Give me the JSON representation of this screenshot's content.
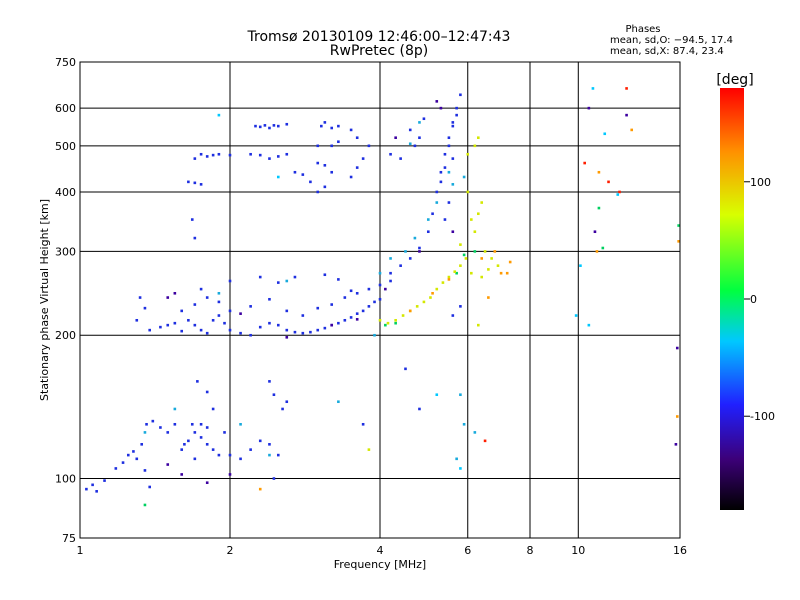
{
  "chart_data": {
    "type": "scatter",
    "title": "Tromsø 20130109 12:46:00–12:47:43",
    "subtitle": "RwPretec (8p)",
    "xlabel": "Frequency [MHz]",
    "ylabel": "Stationary phase Virtual Height [km]",
    "x_scale": "log",
    "y_scale": "log",
    "xlim": [
      1,
      16
    ],
    "ylim": [
      75,
      750
    ],
    "x_ticks": [
      1,
      2,
      4,
      6,
      8,
      10,
      16
    ],
    "y_ticks": [
      75,
      100,
      200,
      300,
      400,
      500,
      600,
      750
    ],
    "grid": true,
    "legend": {
      "title": "Phases",
      "line1": "mean, sd,O: −94.5, 17.4",
      "line2": "mean, sd,X:  87.4, 23.4",
      "placement": "top-right"
    },
    "colorbar": {
      "label": "[deg]",
      "range": [
        -180,
        180
      ],
      "ticks": [
        100,
        0,
        -100
      ],
      "colormap": [
        "#000000",
        "#3c0078",
        "#2020ff",
        "#00c8ff",
        "#00ff40",
        "#d8ff00",
        "#ff9000",
        "#ff0000"
      ]
    },
    "series": [
      {
        "color": "#1e2fe0",
        "points": [
          [
            1.03,
            95
          ],
          [
            1.06,
            97
          ],
          [
            1.08,
            94
          ],
          [
            1.12,
            99
          ],
          [
            1.18,
            105
          ],
          [
            1.22,
            108
          ],
          [
            1.25,
            112
          ],
          [
            1.28,
            114
          ],
          [
            1.3,
            110
          ],
          [
            1.33,
            118
          ],
          [
            1.35,
            104
          ],
          [
            1.38,
            96
          ],
          [
            1.36,
            130
          ],
          [
            1.4,
            132
          ],
          [
            1.45,
            128
          ],
          [
            1.5,
            125
          ],
          [
            1.55,
            130
          ],
          [
            1.6,
            115
          ],
          [
            1.62,
            118
          ],
          [
            1.65,
            120
          ],
          [
            1.7,
            125
          ],
          [
            1.75,
            122
          ],
          [
            1.8,
            118
          ],
          [
            1.85,
            115
          ],
          [
            1.9,
            112
          ],
          [
            1.7,
            110
          ],
          [
            1.8,
            128
          ],
          [
            1.75,
            130
          ],
          [
            1.68,
            130
          ],
          [
            1.85,
            140
          ],
          [
            1.72,
            160
          ],
          [
            1.8,
            152
          ],
          [
            1.95,
            125
          ],
          [
            2.0,
            112
          ],
          [
            2.1,
            110
          ],
          [
            2.2,
            115
          ],
          [
            2.3,
            120
          ],
          [
            2.4,
            118
          ],
          [
            2.5,
            112
          ],
          [
            2.45,
            100
          ],
          [
            2.6,
            145
          ],
          [
            2.55,
            140
          ],
          [
            1.38,
            205
          ],
          [
            1.45,
            208
          ],
          [
            1.5,
            210
          ],
          [
            1.55,
            212
          ],
          [
            1.6,
            204
          ],
          [
            1.65,
            215
          ],
          [
            1.7,
            210
          ],
          [
            1.75,
            205
          ],
          [
            1.8,
            202
          ],
          [
            1.85,
            215
          ],
          [
            1.9,
            220
          ],
          [
            1.95,
            212
          ],
          [
            2.0,
            205
          ],
          [
            2.1,
            202
          ],
          [
            2.2,
            200
          ],
          [
            2.3,
            208
          ],
          [
            2.4,
            212
          ],
          [
            2.5,
            210
          ],
          [
            2.6,
            205
          ],
          [
            2.7,
            203
          ],
          [
            2.8,
            202
          ],
          [
            2.9,
            203
          ],
          [
            3.0,
            205
          ],
          [
            3.1,
            207
          ],
          [
            3.2,
            210
          ],
          [
            3.3,
            212
          ],
          [
            3.4,
            215
          ],
          [
            3.5,
            218
          ],
          [
            3.6,
            222
          ],
          [
            3.7,
            225
          ],
          [
            3.8,
            230
          ],
          [
            3.9,
            235
          ],
          [
            4.0,
            238
          ],
          [
            1.6,
            225
          ],
          [
            1.7,
            232
          ],
          [
            1.8,
            240
          ],
          [
            1.9,
            235
          ],
          [
            2.0,
            225
          ],
          [
            2.2,
            230
          ],
          [
            2.4,
            238
          ],
          [
            2.6,
            225
          ],
          [
            2.8,
            220
          ],
          [
            3.0,
            228
          ],
          [
            3.2,
            232
          ],
          [
            3.4,
            240
          ],
          [
            3.6,
            245
          ],
          [
            3.8,
            250
          ],
          [
            4.0,
            255
          ],
          [
            4.2,
            260
          ],
          [
            1.75,
            250
          ],
          [
            2.0,
            260
          ],
          [
            2.3,
            265
          ],
          [
            2.5,
            258
          ],
          [
            2.7,
            265
          ],
          [
            3.1,
            268
          ],
          [
            3.3,
            262
          ],
          [
            3.5,
            248
          ],
          [
            1.3,
            215
          ],
          [
            1.35,
            228
          ],
          [
            1.32,
            240
          ],
          [
            4.2,
            270
          ],
          [
            4.4,
            280
          ],
          [
            4.6,
            290
          ],
          [
            4.8,
            305
          ],
          [
            5.0,
            330
          ],
          [
            5.1,
            360
          ],
          [
            5.2,
            400
          ],
          [
            5.3,
            440
          ],
          [
            5.4,
            480
          ],
          [
            5.5,
            520
          ],
          [
            5.6,
            560
          ],
          [
            5.7,
            600
          ],
          [
            5.8,
            640
          ],
          [
            5.3,
            420
          ],
          [
            5.4,
            450
          ],
          [
            5.5,
            500
          ],
          [
            5.6,
            550
          ],
          [
            5.7,
            580
          ],
          [
            5.6,
            470
          ],
          [
            5.5,
            380
          ],
          [
            5.4,
            350
          ],
          [
            1.8,
            475
          ],
          [
            1.85,
            478
          ],
          [
            1.9,
            480
          ],
          [
            2.0,
            478
          ],
          [
            1.75,
            480
          ],
          [
            1.7,
            470
          ],
          [
            1.65,
            420
          ],
          [
            1.7,
            418
          ],
          [
            1.75,
            415
          ],
          [
            2.25,
            550
          ],
          [
            2.3,
            548
          ],
          [
            2.35,
            552
          ],
          [
            2.4,
            545
          ],
          [
            2.45,
            552
          ],
          [
            2.5,
            550
          ],
          [
            2.6,
            555
          ],
          [
            2.2,
            480
          ],
          [
            2.3,
            478
          ],
          [
            2.4,
            470
          ],
          [
            2.5,
            475
          ],
          [
            2.6,
            480
          ],
          [
            2.7,
            440
          ],
          [
            2.8,
            435
          ],
          [
            2.9,
            420
          ],
          [
            3.0,
            460
          ],
          [
            3.1,
            455
          ],
          [
            3.2,
            440
          ],
          [
            3.1,
            410
          ],
          [
            3.0,
            400
          ],
          [
            3.05,
            550
          ],
          [
            3.1,
            560
          ],
          [
            3.2,
            545
          ],
          [
            3.3,
            550
          ],
          [
            3.0,
            500
          ],
          [
            3.2,
            500
          ],
          [
            3.3,
            510
          ],
          [
            3.5,
            540
          ],
          [
            3.6,
            520
          ],
          [
            3.8,
            500
          ],
          [
            3.6,
            450
          ],
          [
            3.7,
            470
          ],
          [
            3.5,
            430
          ],
          [
            4.2,
            480
          ],
          [
            4.4,
            470
          ],
          [
            4.6,
            540
          ],
          [
            4.8,
            520
          ],
          [
            4.9,
            570
          ],
          [
            4.7,
            500
          ],
          [
            1.68,
            350
          ],
          [
            1.7,
            320
          ],
          [
            2.4,
            160
          ],
          [
            2.45,
            150
          ],
          [
            3.7,
            130
          ],
          [
            4.5,
            170
          ],
          [
            4.8,
            140
          ],
          [
            5.6,
            220
          ],
          [
            5.8,
            230
          ]
        ]
      },
      {
        "color": "#18aadc",
        "points": [
          [
            1.35,
            125
          ],
          [
            1.55,
            140
          ],
          [
            2.1,
            130
          ],
          [
            2.4,
            112
          ],
          [
            3.3,
            145
          ],
          [
            4.0,
            270
          ],
          [
            4.2,
            290
          ],
          [
            4.5,
            300
          ],
          [
            4.7,
            320
          ],
          [
            5.0,
            350
          ],
          [
            5.2,
            380
          ],
          [
            5.6,
            415
          ],
          [
            5.9,
            430
          ],
          [
            5.5,
            440
          ],
          [
            2.6,
            260
          ],
          [
            1.9,
            245
          ],
          [
            5.8,
            150
          ],
          [
            5.9,
            130
          ],
          [
            6.2,
            125
          ],
          [
            5.7,
            110
          ],
          [
            4.6,
            505
          ],
          [
            4.8,
            560
          ],
          [
            3.9,
            200
          ]
        ]
      },
      {
        "color": "#3c00a0",
        "points": [
          [
            1.5,
            107
          ],
          [
            1.6,
            102
          ],
          [
            1.8,
            98
          ],
          [
            2.0,
            102
          ],
          [
            1.5,
            240
          ],
          [
            1.55,
            245
          ],
          [
            2.1,
            222
          ],
          [
            2.6,
            198
          ],
          [
            3.2,
            210
          ],
          [
            3.6,
            216
          ],
          [
            4.1,
            250
          ],
          [
            4.8,
            300
          ],
          [
            5.6,
            330
          ],
          [
            5.3,
            600
          ],
          [
            10.5,
            600
          ],
          [
            10.8,
            330
          ],
          [
            12.5,
            580
          ],
          [
            15.8,
            188
          ],
          [
            15.7,
            118
          ],
          [
            4.3,
            520
          ],
          [
            5.2,
            620
          ]
        ]
      },
      {
        "color": "#00d060",
        "points": [
          [
            4.1,
            210
          ],
          [
            4.3,
            212
          ],
          [
            5.7,
            270
          ],
          [
            5.9,
            295
          ],
          [
            6.2,
            300
          ],
          [
            1.35,
            88
          ],
          [
            15.9,
            340
          ],
          [
            11.0,
            370
          ],
          [
            11.2,
            305
          ]
        ]
      },
      {
        "color": "#d4e800",
        "points": [
          [
            4.0,
            215
          ],
          [
            4.15,
            212
          ],
          [
            4.3,
            215
          ],
          [
            4.45,
            220
          ],
          [
            4.6,
            225
          ],
          [
            4.75,
            230
          ],
          [
            4.9,
            235
          ],
          [
            5.05,
            240
          ],
          [
            5.2,
            250
          ],
          [
            5.35,
            258
          ],
          [
            5.5,
            265
          ],
          [
            5.65,
            272
          ],
          [
            5.8,
            280
          ],
          [
            5.95,
            290
          ],
          [
            6.2,
            330
          ],
          [
            6.3,
            360
          ],
          [
            6.4,
            380
          ],
          [
            6.5,
            300
          ],
          [
            6.7,
            290
          ],
          [
            6.9,
            280
          ],
          [
            6.1,
            270
          ],
          [
            6.4,
            265
          ],
          [
            6.6,
            275
          ],
          [
            6.0,
            480
          ],
          [
            6.2,
            500
          ],
          [
            6.3,
            520
          ],
          [
            6.1,
            350
          ],
          [
            6.0,
            400
          ],
          [
            5.8,
            310
          ],
          [
            3.8,
            115
          ],
          [
            6.3,
            210
          ]
        ]
      },
      {
        "color": "#ff9a00",
        "points": [
          [
            4.6,
            225
          ],
          [
            5.1,
            245
          ],
          [
            5.5,
            262
          ],
          [
            6.4,
            290
          ],
          [
            6.8,
            300
          ],
          [
            7.0,
            270
          ],
          [
            7.2,
            270
          ],
          [
            6.6,
            240
          ],
          [
            7.3,
            285
          ],
          [
            11.0,
            440
          ],
          [
            12.8,
            540
          ],
          [
            10.9,
            300
          ],
          [
            2.3,
            95
          ],
          [
            15.8,
            135
          ],
          [
            15.9,
            315
          ]
        ]
      },
      {
        "color": "#ff1e00",
        "points": [
          [
            6.5,
            120
          ],
          [
            12.5,
            660
          ],
          [
            11.5,
            420
          ],
          [
            12.1,
            400
          ],
          [
            10.3,
            460
          ]
        ]
      },
      {
        "color": "#00c8ff",
        "points": [
          [
            10.7,
            660
          ],
          [
            11.3,
            530
          ],
          [
            10.1,
            280
          ],
          [
            10.5,
            210
          ],
          [
            9.9,
            220
          ],
          [
            5.2,
            150
          ],
          [
            5.8,
            105
          ],
          [
            1.9,
            580
          ],
          [
            2.5,
            430
          ],
          [
            12.0,
            395
          ]
        ]
      }
    ]
  }
}
